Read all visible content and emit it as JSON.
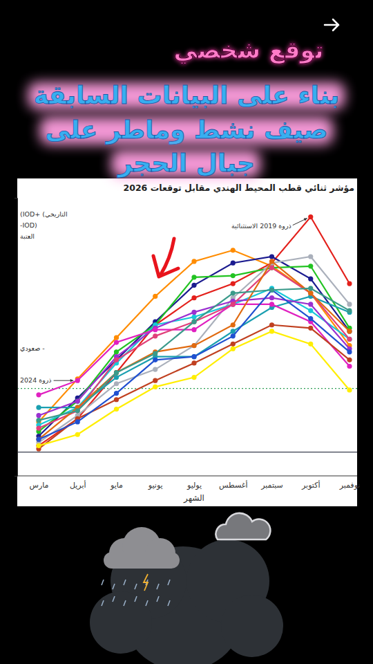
{
  "overlay": {
    "tag": "توقع شخصي",
    "lines": [
      "بناء على البيانات السابقة",
      "صيف نشط وماطر على",
      "جبال الحجر"
    ]
  },
  "chart_data": {
    "type": "line",
    "title": "مؤشر ثنائي قطب المحيط الهندي مقابل توقعات 2026",
    "x_label": "الشهر",
    "categories": [
      "مارس",
      "أبريل",
      "مايو",
      "يونيو",
      "يوليو",
      "أغسطس",
      "سبتمبر",
      "أكتوبر",
      "نوفمبر"
    ],
    "ylim": [
      -0.15,
      1.6
    ],
    "yticks": [
      0
    ],
    "grid": true,
    "tick_labels": "x",
    "marker": "circle",
    "reference_lines": [
      {
        "value": 0.4,
        "color": "#2e9d55",
        "line_style": "dotted"
      }
    ],
    "annotations": [
      {
        "text": "(IOD+ (التاريخي"
      },
      {
        "text": "-IOD)"
      },
      {
        "text": "العتبة"
      },
      {
        "text": "صعودي -"
      },
      {
        "text": "ذروة 2019 الاستثنائية",
        "x": "أكتوبر",
        "y": 1.48
      },
      {
        "text": "ذروة 2024",
        "x": "أبريل",
        "y": 0.45
      }
    ],
    "series": [
      {
        "color": "#ff8c00",
        "values": [
          0.19,
          0.46,
          0.72,
          0.98,
          1.2,
          1.27,
          1.17,
          1.0,
          0.67
        ]
      },
      {
        "color": "#e3201b",
        "values": [
          0.04,
          0.21,
          0.5,
          0.8,
          0.97,
          1.06,
          1.19,
          1.48,
          1.06
        ]
      },
      {
        "color": "#1b1b8f",
        "values": [
          0.1,
          0.34,
          0.58,
          0.82,
          1.05,
          1.19,
          1.23,
          1.09,
          0.76
        ]
      },
      {
        "color": "#22c322",
        "values": [
          0.13,
          0.32,
          0.63,
          0.8,
          1.1,
          1.11,
          1.16,
          1.17,
          0.78
        ]
      },
      {
        "color": "#aab0bb",
        "values": [
          0.06,
          0.23,
          0.43,
          0.52,
          0.67,
          0.97,
          1.19,
          1.23,
          0.93
        ]
      },
      {
        "color": "#18c8d8",
        "values": [
          0.17,
          0.28,
          0.56,
          0.8,
          0.85,
          0.93,
          1.03,
          0.89,
          0.71
        ]
      },
      {
        "color": "#1a9fb0",
        "values": [
          0.28,
          0.28,
          0.47,
          0.6,
          0.6,
          0.76,
          0.91,
          0.98,
          0.88
        ]
      },
      {
        "color": "#9b30d0",
        "values": [
          0.23,
          0.32,
          0.6,
          0.78,
          0.88,
          0.95,
          0.97,
          0.93,
          0.65
        ]
      },
      {
        "color": "#e020c0",
        "values": [
          0.36,
          0.45,
          0.69,
          0.77,
          0.77,
          0.93,
          0.93,
          0.82,
          0.54
        ]
      },
      {
        "color": "#e0407a",
        "values": [
          0.15,
          0.26,
          0.58,
          0.73,
          0.82,
          0.93,
          1.16,
          1.0,
          0.71
        ]
      },
      {
        "color": "#e06a10",
        "values": [
          0.08,
          0.28,
          0.5,
          0.63,
          0.67,
          0.8,
          1.2,
          1.0,
          0.76
        ]
      },
      {
        "color": "#c04020",
        "values": [
          0.02,
          0.21,
          0.33,
          0.45,
          0.56,
          0.68,
          0.8,
          0.78,
          0.58
        ]
      },
      {
        "color": "#ffee00",
        "values": [
          0.04,
          0.11,
          0.27,
          0.41,
          0.47,
          0.65,
          0.76,
          0.68,
          0.39
        ]
      },
      {
        "color": "#2050d0",
        "values": [
          0.08,
          0.19,
          0.37,
          0.58,
          0.6,
          0.73,
          1.02,
          0.84,
          0.63
        ]
      },
      {
        "color": "#3a9a8a",
        "values": [
          0.2,
          0.26,
          0.5,
          0.62,
          0.82,
          1.0,
          1.02,
          1.03,
          0.89
        ]
      }
    ]
  }
}
